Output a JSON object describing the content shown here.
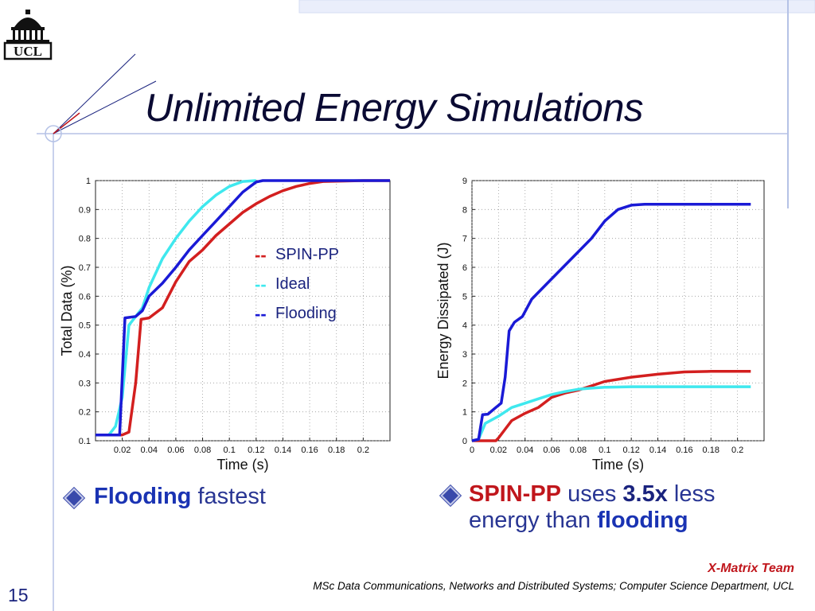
{
  "slide": {
    "title": "Unlimited Energy Simulations",
    "logo_text": "UCL",
    "number": "15",
    "footer_team": "X-Matrix Team",
    "footer_dept": "MSc Data Communications, Networks and Distributed Systems; Computer Science Department, UCL"
  },
  "legend": [
    {
      "dash": "--",
      "label": "SPIN-PP",
      "color": "#d31f1f"
    },
    {
      "dash": "--",
      "label": "Ideal",
      "color": "#3fe8ee"
    },
    {
      "dash": "--",
      "label": "Flooding",
      "color": "#1a1ad6"
    }
  ],
  "bullets": {
    "b1_strong": "Flooding",
    "b1_rest": " fastest",
    "b2_strong": "SPIN-PP",
    "b2_mid": " uses ",
    "b2_factor": "3.5x",
    "b2_after": " less energy than ",
    "b2_end": "flooding"
  },
  "colors": {
    "spin": "#d31f1f",
    "ideal": "#3fe8ee",
    "flood": "#1a1ad6"
  },
  "chart_data": [
    {
      "type": "line",
      "xlabel": "Time (s)",
      "ylabel": "Total Data (%)",
      "xlim": [
        0,
        0.22
      ],
      "ylim": [
        0.1,
        1
      ],
      "xticks": [
        0.02,
        0.04,
        0.06,
        0.08,
        0.1,
        0.12,
        0.14,
        0.16,
        0.18,
        0.2
      ],
      "xtick_labels": [
        "0.02",
        "0.04",
        "0.06",
        "0.08",
        "0.1",
        "0.12",
        "0.14",
        "0.16",
        "0.18",
        "0.2"
      ],
      "yticks": [
        0.1,
        0.2,
        0.3,
        0.4,
        0.5,
        0.6,
        0.7,
        0.8,
        0.9,
        1
      ],
      "ytick_labels": [
        "0.1",
        "0.2",
        "0.3",
        "0.4",
        "0.5",
        "0.6",
        "0.7",
        "0.8",
        "0.9",
        "1"
      ],
      "grid": true,
      "series": [
        {
          "name": "SPIN-PP",
          "color": "#d31f1f",
          "points": [
            [
              0,
              0.12
            ],
            [
              0.02,
              0.12
            ],
            [
              0.025,
              0.13
            ],
            [
              0.03,
              0.3
            ],
            [
              0.034,
              0.52
            ],
            [
              0.04,
              0.525
            ],
            [
              0.05,
              0.56
            ],
            [
              0.06,
              0.65
            ],
            [
              0.07,
              0.72
            ],
            [
              0.08,
              0.76
            ],
            [
              0.09,
              0.81
            ],
            [
              0.1,
              0.85
            ],
            [
              0.11,
              0.89
            ],
            [
              0.12,
              0.92
            ],
            [
              0.13,
              0.945
            ],
            [
              0.14,
              0.965
            ],
            [
              0.15,
              0.98
            ],
            [
              0.16,
              0.99
            ],
            [
              0.17,
              0.997
            ],
            [
              0.2,
              1
            ],
            [
              0.22,
              1
            ]
          ]
        },
        {
          "name": "Ideal",
          "color": "#3fe8ee",
          "points": [
            [
              0.01,
              0.12
            ],
            [
              0.015,
              0.15
            ],
            [
              0.02,
              0.25
            ],
            [
              0.025,
              0.5
            ],
            [
              0.03,
              0.53
            ],
            [
              0.035,
              0.56
            ],
            [
              0.04,
              0.63
            ],
            [
              0.05,
              0.73
            ],
            [
              0.06,
              0.8
            ],
            [
              0.07,
              0.86
            ],
            [
              0.08,
              0.91
            ],
            [
              0.09,
              0.95
            ],
            [
              0.1,
              0.98
            ],
            [
              0.11,
              0.997
            ],
            [
              0.12,
              1
            ]
          ]
        },
        {
          "name": "Flooding",
          "color": "#1a1ad6",
          "points": [
            [
              0,
              0.12
            ],
            [
              0.018,
              0.12
            ],
            [
              0.022,
              0.525
            ],
            [
              0.03,
              0.53
            ],
            [
              0.035,
              0.55
            ],
            [
              0.04,
              0.6
            ],
            [
              0.05,
              0.645
            ],
            [
              0.06,
              0.7
            ],
            [
              0.07,
              0.76
            ],
            [
              0.08,
              0.81
            ],
            [
              0.09,
              0.86
            ],
            [
              0.1,
              0.91
            ],
            [
              0.11,
              0.96
            ],
            [
              0.12,
              0.995
            ],
            [
              0.125,
              1
            ],
            [
              0.22,
              1
            ]
          ]
        }
      ]
    },
    {
      "type": "line",
      "xlabel": "Time (s)",
      "ylabel": "Energy Dissipated (J)",
      "xlim": [
        0,
        0.22
      ],
      "ylim": [
        0,
        9
      ],
      "xticks": [
        0,
        0.02,
        0.04,
        0.06,
        0.08,
        0.1,
        0.12,
        0.14,
        0.16,
        0.18,
        0.2
      ],
      "xtick_labels": [
        "0",
        "0.02",
        "0.04",
        "0.06",
        "0.08",
        "0.1",
        "0.12",
        "0.14",
        "0.16",
        "0.18",
        "0.2"
      ],
      "yticks": [
        0,
        1,
        2,
        3,
        4,
        5,
        6,
        7,
        8,
        9
      ],
      "ytick_labels": [
        "0",
        "1",
        "2",
        "3",
        "4",
        "5",
        "6",
        "7",
        "8",
        "9"
      ],
      "grid": true,
      "series": [
        {
          "name": "SPIN-PP",
          "color": "#d31f1f",
          "points": [
            [
              0,
              0
            ],
            [
              0.018,
              0
            ],
            [
              0.02,
              0.1
            ],
            [
              0.025,
              0.4
            ],
            [
              0.03,
              0.7
            ],
            [
              0.04,
              0.95
            ],
            [
              0.05,
              1.15
            ],
            [
              0.06,
              1.5
            ],
            [
              0.07,
              1.65
            ],
            [
              0.08,
              1.75
            ],
            [
              0.09,
              1.9
            ],
            [
              0.1,
              2.05
            ],
            [
              0.12,
              2.2
            ],
            [
              0.14,
              2.3
            ],
            [
              0.16,
              2.38
            ],
            [
              0.18,
              2.4
            ],
            [
              0.21,
              2.4
            ]
          ]
        },
        {
          "name": "Ideal",
          "color": "#3fe8ee",
          "points": [
            [
              0,
              0
            ],
            [
              0.005,
              0.05
            ],
            [
              0.01,
              0.6
            ],
            [
              0.02,
              0.85
            ],
            [
              0.03,
              1.15
            ],
            [
              0.04,
              1.3
            ],
            [
              0.05,
              1.45
            ],
            [
              0.06,
              1.6
            ],
            [
              0.07,
              1.7
            ],
            [
              0.08,
              1.78
            ],
            [
              0.09,
              1.82
            ],
            [
              0.1,
              1.85
            ],
            [
              0.12,
              1.87
            ],
            [
              0.21,
              1.87
            ]
          ]
        },
        {
          "name": "Flooding",
          "color": "#1a1ad6",
          "points": [
            [
              0,
              0
            ],
            [
              0.005,
              0.05
            ],
            [
              0.008,
              0.9
            ],
            [
              0.012,
              0.92
            ],
            [
              0.018,
              1.15
            ],
            [
              0.022,
              1.3
            ],
            [
              0.025,
              2.2
            ],
            [
              0.028,
              3.8
            ],
            [
              0.032,
              4.1
            ],
            [
              0.038,
              4.3
            ],
            [
              0.045,
              4.9
            ],
            [
              0.06,
              5.6
            ],
            [
              0.075,
              6.3
            ],
            [
              0.09,
              7.0
            ],
            [
              0.1,
              7.6
            ],
            [
              0.11,
              8.0
            ],
            [
              0.12,
              8.15
            ],
            [
              0.13,
              8.18
            ],
            [
              0.21,
              8.18
            ]
          ]
        }
      ]
    }
  ]
}
